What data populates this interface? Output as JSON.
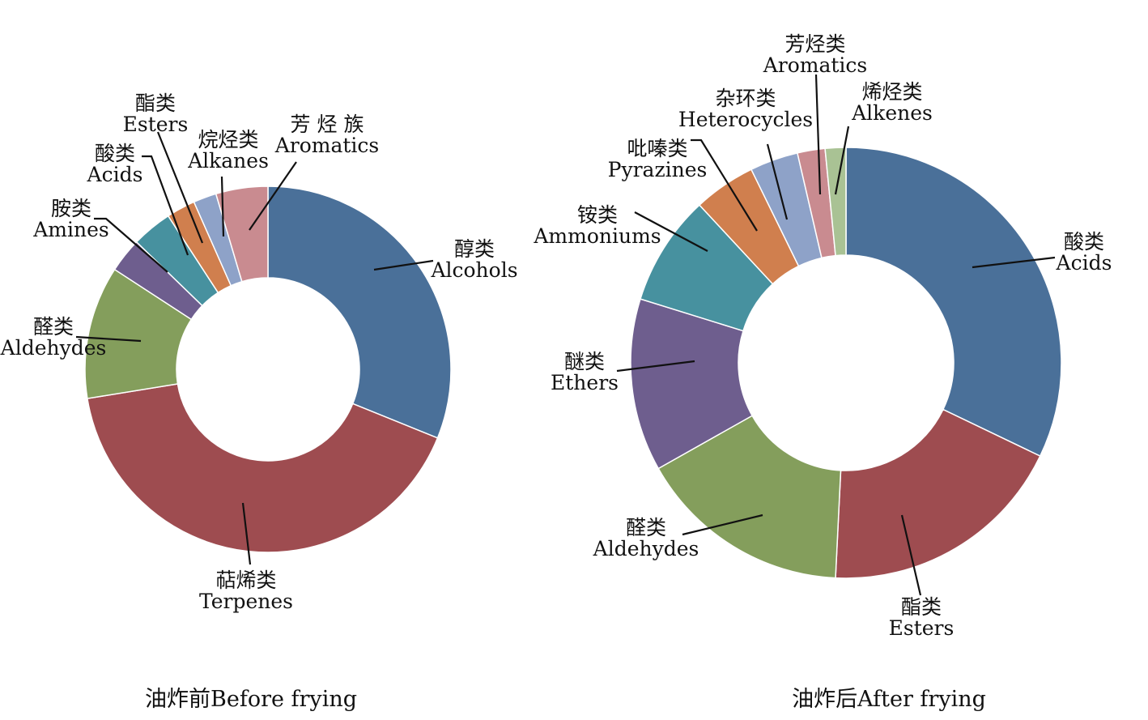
{
  "chart_data": [
    {
      "type": "pie",
      "donut": true,
      "title": "油炸前Before frying",
      "slices": [
        {
          "zh": "醇类",
          "en": "Alcohols",
          "value": 30.5,
          "color": "#4a7099"
        },
        {
          "zh": "萜烯类",
          "en": "Terpenes",
          "value": 40.5,
          "color": "#9e4c50"
        },
        {
          "zh": "醛类",
          "en": "Aldehydes",
          "value": 11.5,
          "color": "#849e5c"
        },
        {
          "zh": "胺类",
          "en": "Amines",
          "value": 3.0,
          "color": "#6e5e8e"
        },
        {
          "zh": "酸类",
          "en": "Acids",
          "value": 3.5,
          "color": "#47919f"
        },
        {
          "zh": "酯类",
          "en": "Esters",
          "value": 2.5,
          "color": "#d07f4e"
        },
        {
          "zh": "烷烃类",
          "en": "Alkanes",
          "value": 2.0,
          "color": "#8ea2c8"
        },
        {
          "zh": "芳 烃 族",
          "en": "Aromatics",
          "value": 4.5,
          "color": "#c98b90"
        }
      ]
    },
    {
      "type": "pie",
      "donut": true,
      "title": "油炸后After frying",
      "slices": [
        {
          "zh": "酸类",
          "en": "Acids",
          "value": 31.0,
          "color": "#4a7099"
        },
        {
          "zh": "酯类",
          "en": "Esters",
          "value": 18.0,
          "color": "#9e4c50"
        },
        {
          "zh": "醛类",
          "en": "Aldehydes",
          "value": 15.5,
          "color": "#849e5c"
        },
        {
          "zh": "醚类",
          "en": "Ethers",
          "value": 12.5,
          "color": "#6e5e8e"
        },
        {
          "zh": "铵类",
          "en": "Ammoniums",
          "value": 8.0,
          "color": "#47919f"
        },
        {
          "zh": "吡嗪类",
          "en": "Pyrazines",
          "value": 4.5,
          "color": "#d07f4e"
        },
        {
          "zh": "杂环类",
          "en": "Heterocycles",
          "value": 3.5,
          "color": "#8ea2c8"
        },
        {
          "zh": "芳烃类",
          "en": "Aromatics",
          "value": 2.0,
          "color": "#c98b90"
        },
        {
          "zh": "烯烃类",
          "en": "Alkenes",
          "value": 1.5,
          "color": "#a9c294"
        }
      ]
    }
  ]
}
